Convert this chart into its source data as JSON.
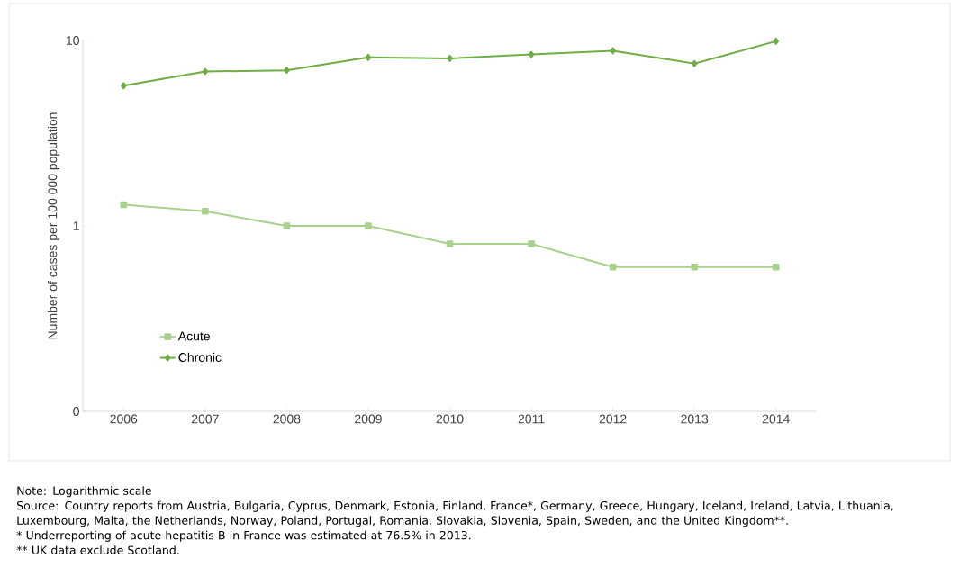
{
  "chart_data": {
    "type": "line",
    "ylabel": "Number of cases per 100 000 population",
    "categories": [
      "2006",
      "2007",
      "2008",
      "2009",
      "2010",
      "2011",
      "2012",
      "2013",
      "2014"
    ],
    "series": [
      {
        "name": "Acute",
        "color": "#a9d18e",
        "marker": "square",
        "values": [
          1.3,
          1.2,
          1.0,
          1.0,
          0.8,
          0.8,
          0.6,
          0.6,
          0.6
        ]
      },
      {
        "name": "Chronic",
        "color": "#70ad47",
        "marker": "diamond",
        "values": [
          5.7,
          6.8,
          6.9,
          8.1,
          8.0,
          8.4,
          8.8,
          7.5,
          9.9
        ]
      }
    ],
    "log": "y",
    "ylim": [
      0.1,
      10
    ],
    "yticks": [
      {
        "value": 0.1,
        "label": "0"
      },
      1,
      10
    ],
    "grid": false,
    "legend": "bottom left",
    "line_style": "solid",
    "annotations": [
      "Note: Logarithmic scale",
      "Source: Country reports from Austria, Bulgaria, Cyprus, Denmark, Estonia, Finland, France*, Germany, Greece, Hungary, Iceland, Ireland, Latvia, Lithuania, Luxembourg, Malta, the Netherlands, Norway, Poland, Portugal, Romania, Slovakia, Slovenia, Spain, Sweden, and the United Kingdom**.",
      "* Underreporting of acute hepatitis B in France was estimated at 76.5% in 2013.",
      "** UK data exclude Scotland."
    ]
  }
}
